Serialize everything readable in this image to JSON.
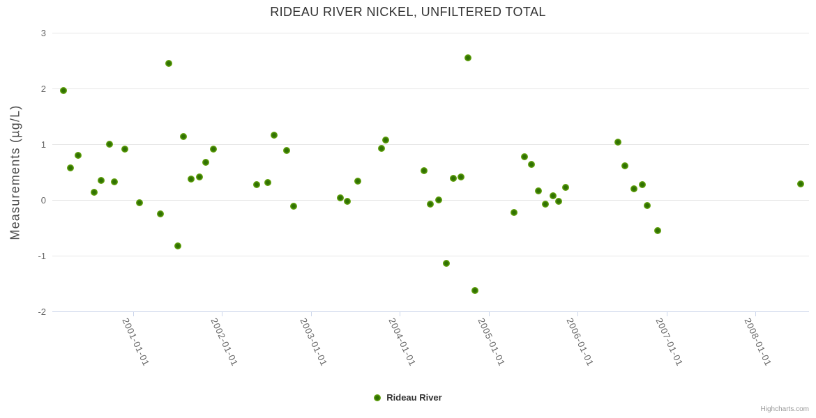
{
  "chart_data": {
    "type": "scatter",
    "title": "RIDEAU RIVER NICKEL, UNFILTERED TOTAL",
    "xlabel": "",
    "ylabel": "Measurements (µg/L)",
    "ylim": [
      -2,
      3
    ],
    "yticks": [
      3,
      2,
      1,
      0,
      -1,
      -2
    ],
    "xticks": [
      "2001-01-01",
      "2002-01-01",
      "2003-01-01",
      "2004-01-01",
      "2005-01-01",
      "2006-01-01",
      "2007-01-01",
      "2008-01-01"
    ],
    "grid": "horizontal-only",
    "legend_position": "bottom-center",
    "credits": "Highcharts.com",
    "series": [
      {
        "name": "Rideau River",
        "color": "#5b9e05",
        "points": [
          {
            "date": "2000-03-19",
            "value": 1.96
          },
          {
            "date": "2000-04-17",
            "value": 0.57
          },
          {
            "date": "2000-05-18",
            "value": 0.8
          },
          {
            "date": "2000-07-23",
            "value": 0.14
          },
          {
            "date": "2000-08-21",
            "value": 0.35
          },
          {
            "date": "2000-09-25",
            "value": 1.0
          },
          {
            "date": "2000-10-15",
            "value": 0.33
          },
          {
            "date": "2000-11-27",
            "value": 0.91
          },
          {
            "date": "2001-01-26",
            "value": -0.05
          },
          {
            "date": "2001-04-21",
            "value": -0.25
          },
          {
            "date": "2001-05-25",
            "value": 2.45
          },
          {
            "date": "2001-07-01",
            "value": -0.83
          },
          {
            "date": "2001-07-24",
            "value": 1.14
          },
          {
            "date": "2001-08-25",
            "value": 0.38
          },
          {
            "date": "2001-09-29",
            "value": 0.41
          },
          {
            "date": "2001-10-27",
            "value": 0.67
          },
          {
            "date": "2001-11-28",
            "value": 0.91
          },
          {
            "date": "2002-05-23",
            "value": 0.27
          },
          {
            "date": "2002-07-05",
            "value": 0.31
          },
          {
            "date": "2002-08-03",
            "value": 1.16
          },
          {
            "date": "2002-09-24",
            "value": 0.89
          },
          {
            "date": "2002-10-20",
            "value": -0.11
          },
          {
            "date": "2003-05-01",
            "value": 0.04
          },
          {
            "date": "2003-05-30",
            "value": -0.02
          },
          {
            "date": "2003-07-12",
            "value": 0.34
          },
          {
            "date": "2003-10-18",
            "value": 0.92
          },
          {
            "date": "2003-11-05",
            "value": 1.07
          },
          {
            "date": "2004-04-10",
            "value": 0.52
          },
          {
            "date": "2004-05-03",
            "value": -0.07
          },
          {
            "date": "2004-06-07",
            "value": 0.0
          },
          {
            "date": "2004-07-10",
            "value": -1.14
          },
          {
            "date": "2004-08-09",
            "value": 0.39
          },
          {
            "date": "2004-09-09",
            "value": 0.41
          },
          {
            "date": "2004-10-08",
            "value": 2.55
          },
          {
            "date": "2004-11-06",
            "value": -1.63
          },
          {
            "date": "2005-04-14",
            "value": -0.22
          },
          {
            "date": "2005-05-26",
            "value": 0.78
          },
          {
            "date": "2005-06-25",
            "value": 0.64
          },
          {
            "date": "2005-07-23",
            "value": 0.16
          },
          {
            "date": "2005-08-22",
            "value": -0.07
          },
          {
            "date": "2005-09-22",
            "value": 0.07
          },
          {
            "date": "2005-10-15",
            "value": -0.03
          },
          {
            "date": "2005-11-13",
            "value": 0.22
          },
          {
            "date": "2006-06-14",
            "value": 1.04
          },
          {
            "date": "2006-07-13",
            "value": 0.61
          },
          {
            "date": "2006-08-19",
            "value": 0.2
          },
          {
            "date": "2006-09-23",
            "value": 0.27
          },
          {
            "date": "2006-10-13",
            "value": -0.1
          },
          {
            "date": "2006-11-25",
            "value": -0.55
          },
          {
            "date": "2008-07-04",
            "value": 0.29
          }
        ]
      }
    ]
  },
  "colors": {
    "marker_outer": "#8ac835",
    "marker_inner": "#2f7102",
    "grid": "#e6e6e6",
    "axis_line": "#ccd6eb",
    "title_text": "#333333",
    "axis_title_text": "#4d4d4d",
    "tick_label_text": "#666666",
    "credits_text": "#999999"
  }
}
